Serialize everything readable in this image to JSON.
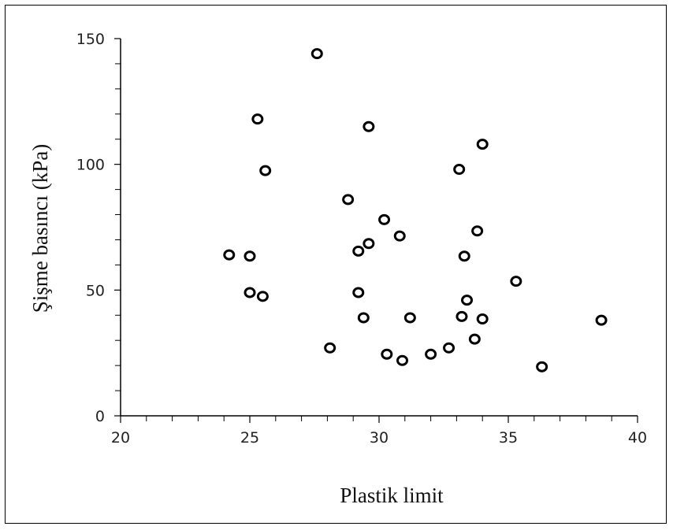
{
  "chart_data": {
    "type": "scatter",
    "xlabel": "Plastik limit",
    "ylabel": "Şişme basıncı (kPa)",
    "xlim": [
      20,
      40
    ],
    "ylim": [
      0,
      150
    ],
    "xticks": [
      20,
      25,
      30,
      35,
      40
    ],
    "yticks": [
      0,
      50,
      100,
      150
    ],
    "xtick_labels": [
      "20",
      "25",
      "30",
      "35",
      "40"
    ],
    "ytick_labels": [
      "0",
      "50",
      "100",
      "150"
    ],
    "grid": false,
    "marker": "open-circle",
    "marker_color": "#000000",
    "series": [
      {
        "x": [
          27.6,
          25.3,
          29.6,
          34.0,
          25.6,
          33.1,
          28.8,
          30.2,
          33.8,
          30.8,
          29.6,
          29.2,
          24.2,
          25.0,
          33.3,
          35.3,
          29.2,
          25.0,
          25.5,
          33.4,
          29.4,
          31.2,
          33.2,
          34.0,
          38.6,
          33.7,
          28.1,
          32.7,
          30.3,
          30.9,
          32.0,
          36.3
        ],
        "y": [
          144,
          118,
          115,
          108,
          97.5,
          98,
          86,
          78,
          73.5,
          71.5,
          68.5,
          65.5,
          64,
          63.5,
          63.5,
          53.5,
          49,
          49,
          47.5,
          46,
          39,
          39,
          39.5,
          38.5,
          38,
          30.5,
          27,
          27,
          24.5,
          22,
          24.5,
          19.5
        ]
      }
    ]
  }
}
